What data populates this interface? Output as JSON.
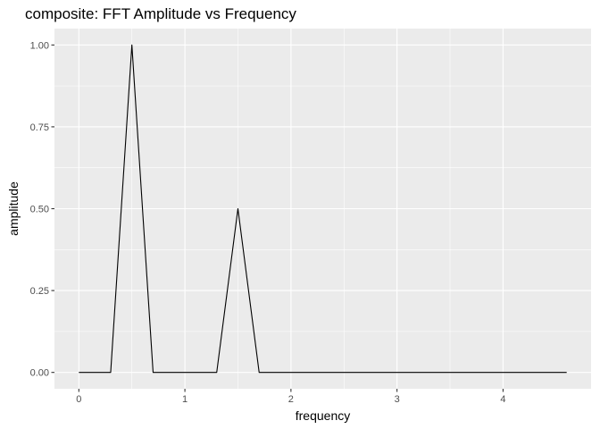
{
  "chart_data": {
    "type": "line",
    "title": "composite: FFT Amplitude vs Frequency",
    "xlabel": "frequency",
    "ylabel": "amplitude",
    "xlim": [
      -0.23,
      4.83
    ],
    "ylim": [
      -0.05,
      1.05
    ],
    "xticks": [
      0,
      1,
      2,
      3,
      4
    ],
    "xtick_labels": [
      "0",
      "1",
      "2",
      "3",
      "4"
    ],
    "yticks": [
      0,
      0.25,
      0.5,
      0.75,
      1
    ],
    "ytick_labels": [
      "0.00",
      "0.25",
      "0.50",
      "0.75",
      "1.00"
    ],
    "grid": true,
    "legend": "none",
    "colors": {
      "panel_background": "#ebebeb",
      "grid_line": "#ffffff",
      "series_line": "#000000"
    },
    "series": [
      {
        "x": [
          0.0,
          0.3,
          0.5,
          0.7,
          1.0,
          1.3,
          1.5,
          1.7,
          2.0,
          2.5,
          3.0,
          3.5,
          4.0,
          4.6
        ],
        "y": [
          0.0,
          0.0,
          1.0,
          0.0,
          0.0,
          0.0,
          0.5,
          0.0,
          0.0,
          0.0,
          0.0,
          0.0,
          0.0,
          0.0
        ]
      }
    ]
  }
}
